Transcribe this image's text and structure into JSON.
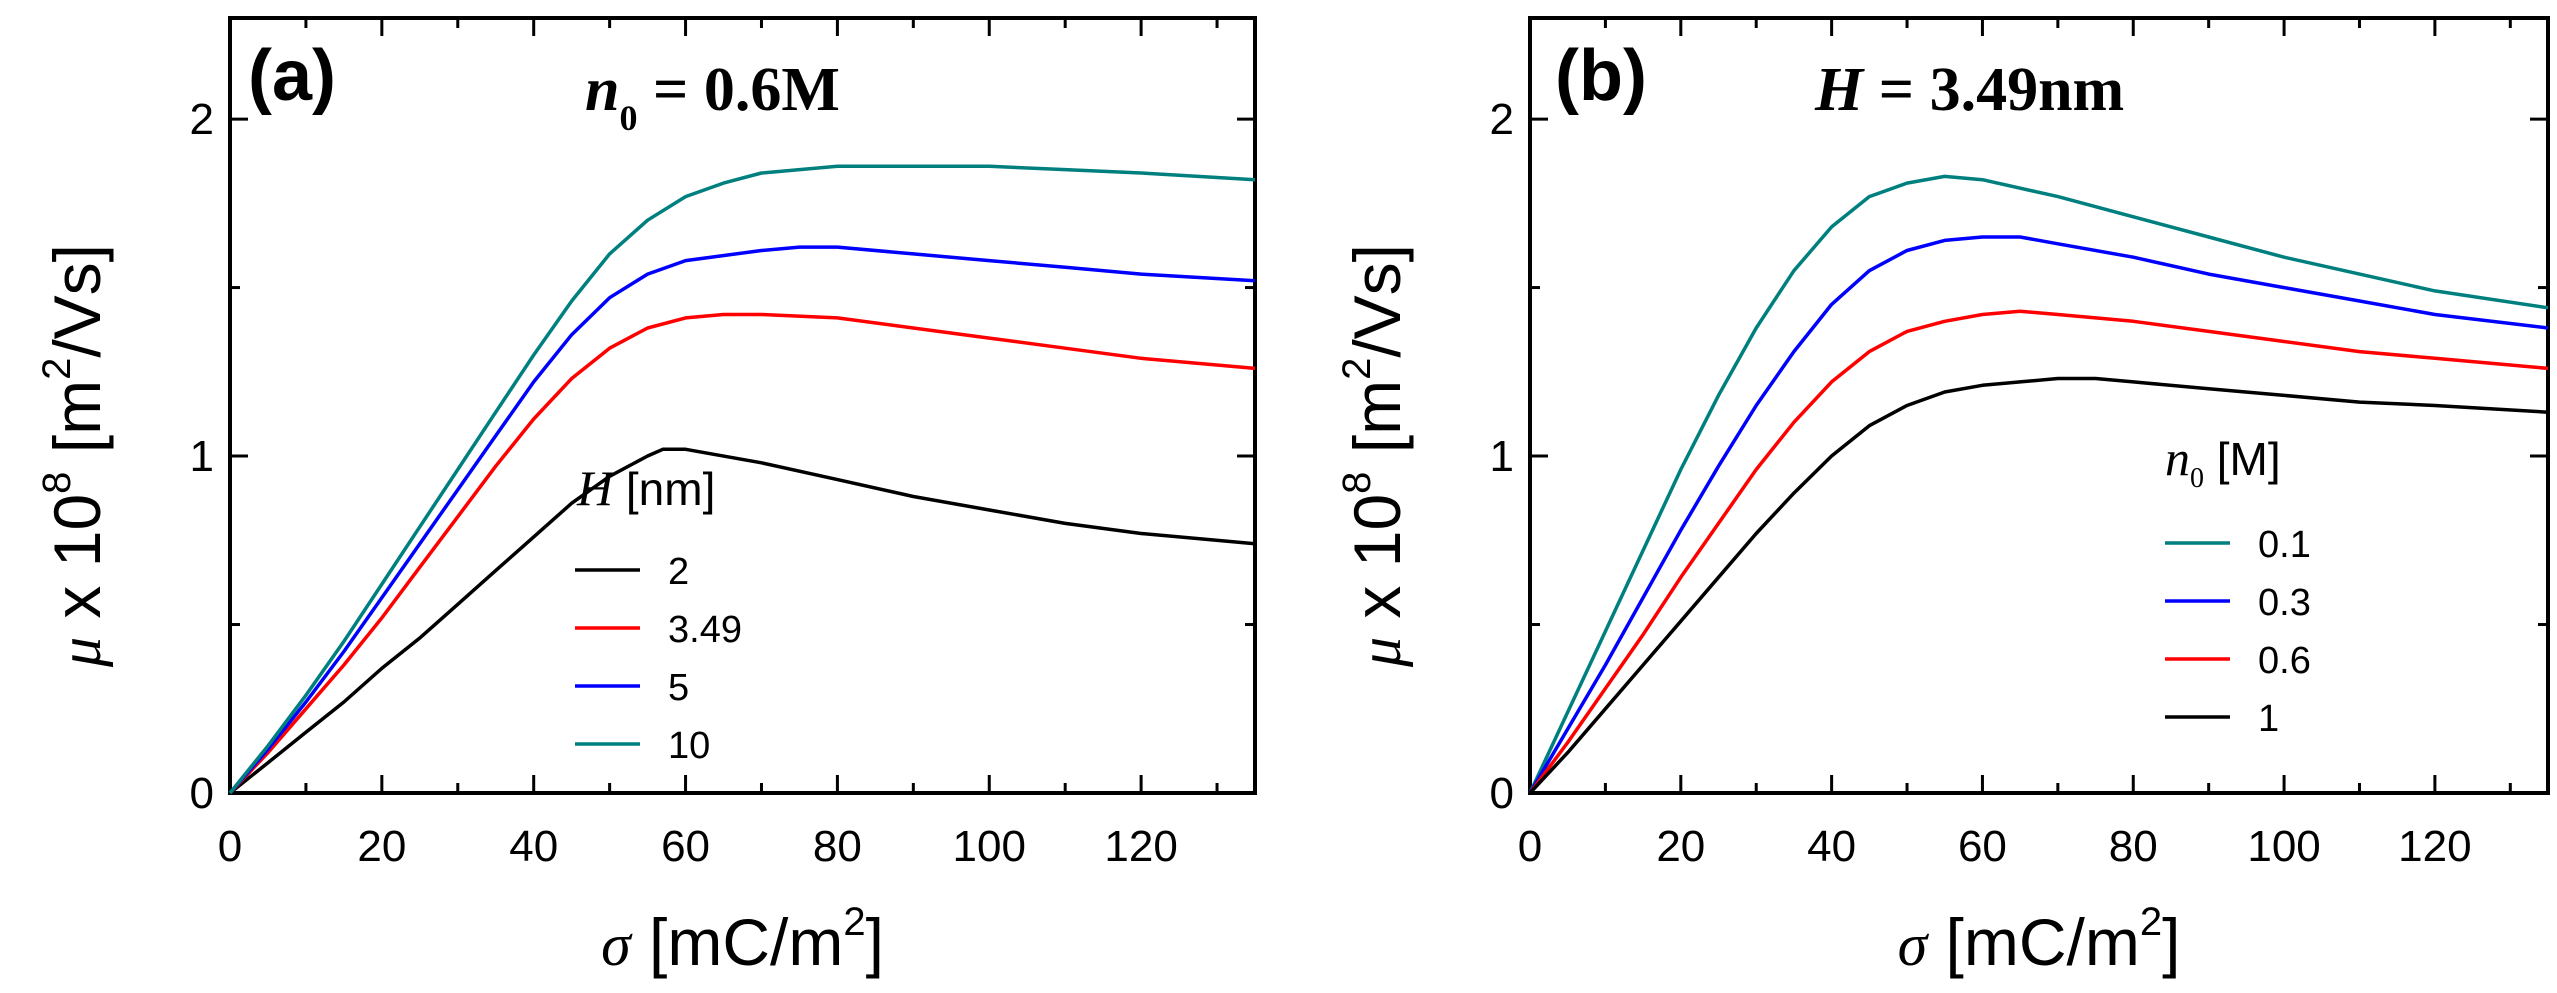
{
  "chart_data": [
    {
      "panel_label": "(a)",
      "type": "line",
      "annotation": {
        "symbol": "n",
        "subscript": "0",
        "value": " = 0.6M"
      },
      "xlabel": {
        "symbol": "σ",
        "unit_base": "[mC/m",
        "unit_sup": "2",
        "unit_end": "]"
      },
      "ylabel": {
        "symbol": "μ",
        "text": "x 10",
        "exp": "8",
        "unit_base": "[m",
        "unit_sup": "2",
        "unit_end": "/Vs]"
      },
      "xlim": [
        0,
        135
      ],
      "ylim": [
        0,
        2.3
      ],
      "xticks": [
        0,
        20,
        40,
        60,
        80,
        100,
        120
      ],
      "yticks": [
        0,
        1,
        2
      ],
      "xtick_labels": [
        "0",
        "20",
        "40",
        "60",
        "80",
        "100",
        "120"
      ],
      "ytick_labels": [
        "0",
        "1",
        "2"
      ],
      "legend": {
        "title_symbol": "H",
        "title_unit": " [nm]",
        "position": "center"
      },
      "series": [
        {
          "name": "2",
          "color": "#000000",
          "points": [
            [
              0,
              0
            ],
            [
              5,
              0.09
            ],
            [
              10,
              0.18
            ],
            [
              15,
              0.27
            ],
            [
              20,
              0.37
            ],
            [
              25,
              0.46
            ],
            [
              30,
              0.56
            ],
            [
              35,
              0.66
            ],
            [
              40,
              0.76
            ],
            [
              45,
              0.86
            ],
            [
              50,
              0.94
            ],
            [
              55,
              1.0
            ],
            [
              57,
              1.02
            ],
            [
              60,
              1.02
            ],
            [
              70,
              0.98
            ],
            [
              80,
              0.93
            ],
            [
              90,
              0.88
            ],
            [
              100,
              0.84
            ],
            [
              110,
              0.8
            ],
            [
              120,
              0.77
            ],
            [
              135,
              0.74
            ]
          ]
        },
        {
          "name": "3.49",
          "color": "#ff0000",
          "points": [
            [
              0,
              0
            ],
            [
              5,
              0.12
            ],
            [
              10,
              0.25
            ],
            [
              15,
              0.38
            ],
            [
              20,
              0.52
            ],
            [
              25,
              0.67
            ],
            [
              30,
              0.82
            ],
            [
              35,
              0.97
            ],
            [
              40,
              1.11
            ],
            [
              45,
              1.23
            ],
            [
              50,
              1.32
            ],
            [
              55,
              1.38
            ],
            [
              60,
              1.41
            ],
            [
              65,
              1.42
            ],
            [
              70,
              1.42
            ],
            [
              80,
              1.41
            ],
            [
              90,
              1.38
            ],
            [
              100,
              1.35
            ],
            [
              110,
              1.32
            ],
            [
              120,
              1.29
            ],
            [
              135,
              1.26
            ]
          ]
        },
        {
          "name": "5",
          "color": "#0000ff",
          "points": [
            [
              0,
              0
            ],
            [
              5,
              0.13
            ],
            [
              10,
              0.27
            ],
            [
              15,
              0.42
            ],
            [
              20,
              0.58
            ],
            [
              25,
              0.74
            ],
            [
              30,
              0.9
            ],
            [
              35,
              1.06
            ],
            [
              40,
              1.22
            ],
            [
              45,
              1.36
            ],
            [
              50,
              1.47
            ],
            [
              55,
              1.54
            ],
            [
              60,
              1.58
            ],
            [
              70,
              1.61
            ],
            [
              75,
              1.62
            ],
            [
              80,
              1.62
            ],
            [
              90,
              1.6
            ],
            [
              100,
              1.58
            ],
            [
              110,
              1.56
            ],
            [
              120,
              1.54
            ],
            [
              135,
              1.52
            ]
          ]
        },
        {
          "name": "10",
          "color": "#007f7f",
          "points": [
            [
              0,
              0
            ],
            [
              5,
              0.14
            ],
            [
              10,
              0.29
            ],
            [
              15,
              0.45
            ],
            [
              20,
              0.62
            ],
            [
              25,
              0.79
            ],
            [
              30,
              0.96
            ],
            [
              35,
              1.13
            ],
            [
              40,
              1.3
            ],
            [
              45,
              1.46
            ],
            [
              50,
              1.6
            ],
            [
              55,
              1.7
            ],
            [
              60,
              1.77
            ],
            [
              65,
              1.81
            ],
            [
              70,
              1.84
            ],
            [
              80,
              1.86
            ],
            [
              90,
              1.86
            ],
            [
              100,
              1.86
            ],
            [
              110,
              1.85
            ],
            [
              120,
              1.84
            ],
            [
              135,
              1.82
            ]
          ]
        }
      ]
    },
    {
      "panel_label": "(b)",
      "type": "line",
      "annotation": {
        "symbol": "H",
        "value": " = 3.49nm"
      },
      "xlabel": {
        "symbol": "σ",
        "unit_base": "[mC/m",
        "unit_sup": "2",
        "unit_end": "]"
      },
      "ylabel": {
        "symbol": "μ",
        "text": "x 10",
        "exp": "8",
        "unit_base": "[m",
        "unit_sup": "2",
        "unit_end": "/Vs]"
      },
      "xlim": [
        0,
        135
      ],
      "ylim": [
        0,
        2.3
      ],
      "xticks": [
        0,
        20,
        40,
        60,
        80,
        100,
        120
      ],
      "yticks": [
        0,
        1,
        2
      ],
      "xtick_labels": [
        "0",
        "20",
        "40",
        "60",
        "80",
        "100",
        "120"
      ],
      "ytick_labels": [
        "0",
        "1",
        "2"
      ],
      "legend": {
        "title_symbol": "n",
        "title_sub": "0",
        "title_unit": " [M]",
        "position": "center-right"
      },
      "series": [
        {
          "name": "0.1",
          "color": "#007f7f",
          "points": [
            [
              0,
              0
            ],
            [
              5,
              0.24
            ],
            [
              10,
              0.48
            ],
            [
              15,
              0.72
            ],
            [
              20,
              0.96
            ],
            [
              25,
              1.18
            ],
            [
              30,
              1.38
            ],
            [
              35,
              1.55
            ],
            [
              40,
              1.68
            ],
            [
              45,
              1.77
            ],
            [
              50,
              1.81
            ],
            [
              55,
              1.83
            ],
            [
              60,
              1.82
            ],
            [
              70,
              1.77
            ],
            [
              80,
              1.71
            ],
            [
              90,
              1.65
            ],
            [
              100,
              1.59
            ],
            [
              110,
              1.54
            ],
            [
              120,
              1.49
            ],
            [
              135,
              1.44
            ]
          ]
        },
        {
          "name": "0.3",
          "color": "#0000ff",
          "points": [
            [
              0,
              0
            ],
            [
              5,
              0.19
            ],
            [
              10,
              0.38
            ],
            [
              15,
              0.58
            ],
            [
              20,
              0.78
            ],
            [
              25,
              0.97
            ],
            [
              30,
              1.15
            ],
            [
              35,
              1.31
            ],
            [
              40,
              1.45
            ],
            [
              45,
              1.55
            ],
            [
              50,
              1.61
            ],
            [
              55,
              1.64
            ],
            [
              60,
              1.65
            ],
            [
              65,
              1.65
            ],
            [
              70,
              1.63
            ],
            [
              80,
              1.59
            ],
            [
              90,
              1.54
            ],
            [
              100,
              1.5
            ],
            [
              110,
              1.46
            ],
            [
              120,
              1.42
            ],
            [
              135,
              1.38
            ]
          ]
        },
        {
          "name": "0.6",
          "color": "#ff0000",
          "points": [
            [
              0,
              0
            ],
            [
              5,
              0.15
            ],
            [
              10,
              0.31
            ],
            [
              15,
              0.47
            ],
            [
              20,
              0.64
            ],
            [
              25,
              0.8
            ],
            [
              30,
              0.96
            ],
            [
              35,
              1.1
            ],
            [
              40,
              1.22
            ],
            [
              45,
              1.31
            ],
            [
              50,
              1.37
            ],
            [
              55,
              1.4
            ],
            [
              60,
              1.42
            ],
            [
              65,
              1.43
            ],
            [
              70,
              1.42
            ],
            [
              80,
              1.4
            ],
            [
              90,
              1.37
            ],
            [
              100,
              1.34
            ],
            [
              110,
              1.31
            ],
            [
              120,
              1.29
            ],
            [
              135,
              1.26
            ]
          ]
        },
        {
          "name": "1",
          "color": "#000000",
          "points": [
            [
              0,
              0
            ],
            [
              5,
              0.12
            ],
            [
              10,
              0.25
            ],
            [
              15,
              0.38
            ],
            [
              20,
              0.51
            ],
            [
              25,
              0.64
            ],
            [
              30,
              0.77
            ],
            [
              35,
              0.89
            ],
            [
              40,
              1.0
            ],
            [
              45,
              1.09
            ],
            [
              50,
              1.15
            ],
            [
              55,
              1.19
            ],
            [
              60,
              1.21
            ],
            [
              65,
              1.22
            ],
            [
              70,
              1.23
            ],
            [
              75,
              1.23
            ],
            [
              80,
              1.22
            ],
            [
              90,
              1.2
            ],
            [
              100,
              1.18
            ],
            [
              110,
              1.16
            ],
            [
              120,
              1.15
            ],
            [
              135,
              1.13
            ]
          ]
        }
      ]
    }
  ]
}
